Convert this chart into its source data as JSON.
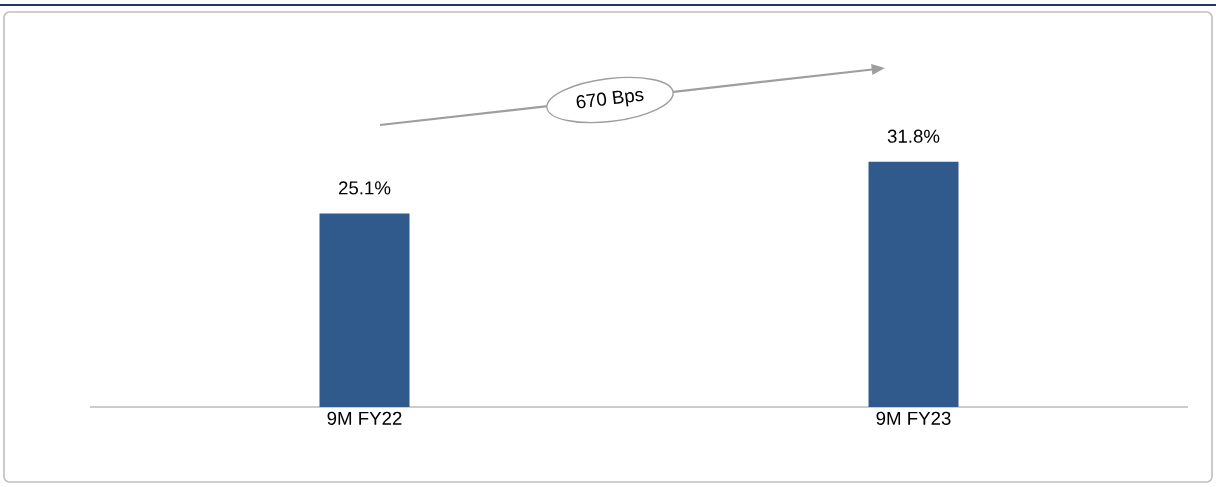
{
  "chart_data": {
    "type": "bar",
    "categories": [
      "9M FY22",
      "9M FY23"
    ],
    "values": [
      25.1,
      31.8
    ],
    "value_labels": [
      "25.1%",
      "31.8%"
    ],
    "color": "#30598c",
    "annotations": [
      "670 Bps"
    ]
  }
}
